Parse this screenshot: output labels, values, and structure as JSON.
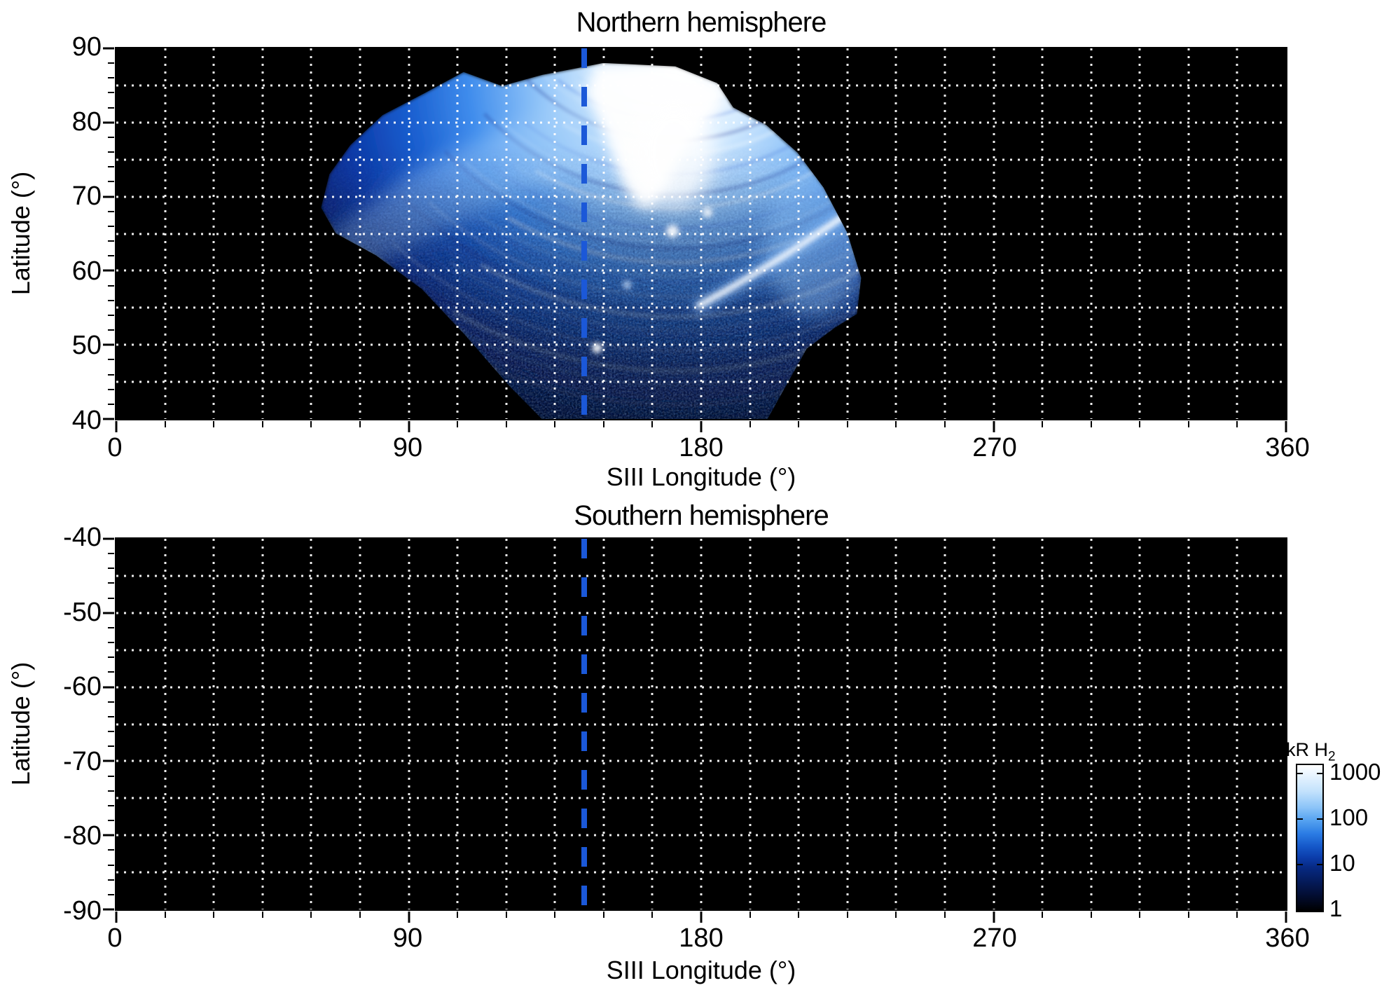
{
  "figure": {
    "accent_color": "#1b58d8",
    "grid_color": "#ffffff",
    "marker_longitude_deg": 144,
    "panels": [
      {
        "title": "Northern hemisphere",
        "xlabel": "SIII Longitude (°)",
        "ylabel": "Latitude (°)",
        "x_ticks": [
          "0",
          "90",
          "180",
          "270",
          "360"
        ],
        "y_ticks": [
          "90",
          "80",
          "70",
          "60",
          "50",
          "40"
        ]
      },
      {
        "title": "Southern hemisphere",
        "xlabel": "SIII Longitude (°)",
        "ylabel": "Latitude (°)",
        "x_ticks": [
          "0",
          "90",
          "180",
          "270",
          "360"
        ],
        "y_ticks": [
          "-40",
          "-50",
          "-60",
          "-70",
          "-80",
          "-90"
        ]
      }
    ],
    "colorbar": {
      "unit": "kR H",
      "unit_sub": "2",
      "tick_labels": [
        "1000",
        "100",
        "10",
        "1"
      ]
    }
  },
  "chart_data": {
    "type": "heatmap",
    "panels": [
      {
        "title": "Northern hemisphere",
        "xlabel": "SIII Longitude (°)",
        "ylabel": "Latitude (°)",
        "xlim": [
          0,
          360
        ],
        "ylim": [
          40,
          90
        ],
        "x_major_ticks": [
          0,
          90,
          180,
          270,
          360
        ],
        "x_minor_tick_step_deg": 15,
        "y_major_ticks": [
          40,
          50,
          60,
          70,
          80,
          90
        ],
        "y_minor_tick_step_deg": 2,
        "grid": {
          "x_step_deg": 15,
          "y_step_deg": 5,
          "style": "dotted",
          "color": "#ffffff"
        },
        "background": "#000000",
        "reference_line": {
          "orientation": "vertical",
          "longitude_deg": 144,
          "style": "dashed",
          "color": "#1b58d8"
        },
        "emission": {
          "present": true,
          "longitude_extent_deg": [
            60,
            231
          ],
          "latitude_extent_deg": [
            40,
            88
          ],
          "bright_core_region": {
            "longitude_deg": [
              140,
              190
            ],
            "latitude_deg": [
              78,
              88
            ],
            "approx_value_kR": 1000
          },
          "bright_arc": {
            "from_longitude_latitude_deg": [
              180,
              56
            ],
            "to_longitude_latitude_deg": [
              225,
              63
            ],
            "approx_value_kR": 1000
          },
          "diffuse_region_value_range_kR": [
            1,
            100
          ]
        }
      },
      {
        "title": "Southern hemisphere",
        "xlabel": "SIII Longitude (°)",
        "ylabel": "Latitude (°)",
        "xlim": [
          0,
          360
        ],
        "ylim": [
          -90,
          -40
        ],
        "x_major_ticks": [
          0,
          90,
          180,
          270,
          360
        ],
        "x_minor_tick_step_deg": 15,
        "y_major_ticks": [
          -90,
          -80,
          -70,
          -60,
          -50,
          -40
        ],
        "y_minor_tick_step_deg": 2,
        "grid": {
          "x_step_deg": 15,
          "y_step_deg": 5,
          "style": "dotted",
          "color": "#ffffff"
        },
        "background": "#000000",
        "reference_line": {
          "orientation": "vertical",
          "longitude_deg": 144,
          "style": "dashed",
          "color": "#1b58d8"
        },
        "emission": {
          "present": false
        }
      }
    ],
    "colorbar": {
      "label": "kR H2",
      "scale": "log",
      "range": [
        1,
        1000
      ],
      "ticks": [
        1000,
        100,
        10,
        1
      ],
      "colormap_low_to_high": [
        "#000000",
        "#051e62",
        "#0b3ba8",
        "#2b7ce4",
        "#8cc4f8",
        "#ffffff"
      ]
    }
  }
}
